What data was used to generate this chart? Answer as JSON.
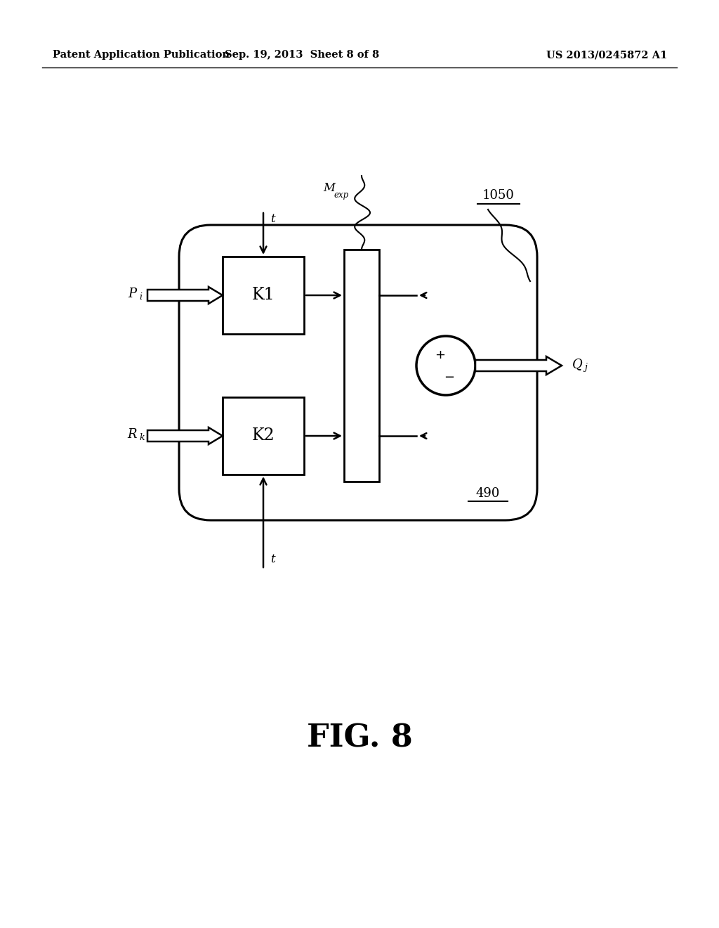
{
  "bg_color": "#ffffff",
  "header_left": "Patent Application Publication",
  "header_center": "Sep. 19, 2013  Sheet 8 of 8",
  "header_right": "US 2013/0245872 A1",
  "fig_label": "FIG. 8",
  "label_1050": "1050",
  "label_490": "490",
  "label_K1": "K1",
  "label_K2": "K2",
  "label_t_top": "t",
  "label_t_bot": "t",
  "label_plus": "+",
  "label_minus": "−"
}
